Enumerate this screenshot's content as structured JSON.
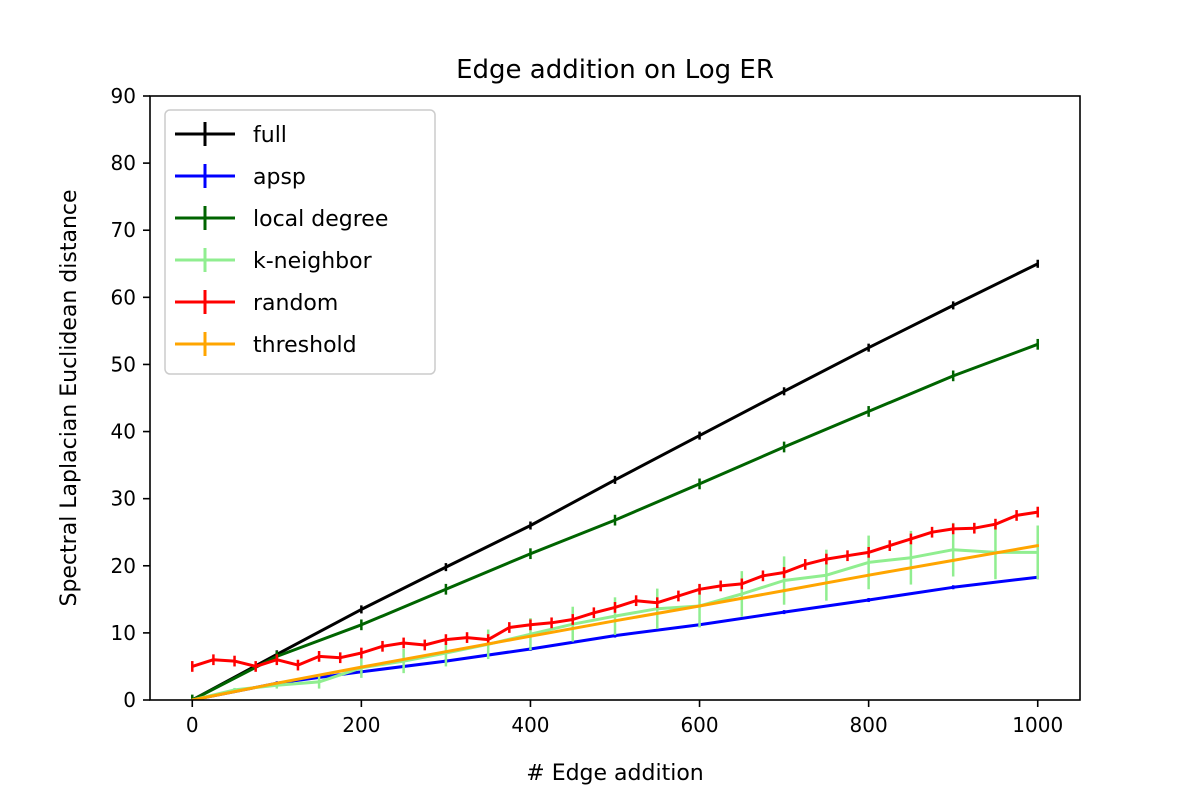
{
  "chart_data": {
    "type": "line",
    "title": "Edge addition on Log ER",
    "xlabel": "# Edge addition",
    "ylabel": "Spectral Laplacian Euclidean distance",
    "xlim": [
      -50,
      1050
    ],
    "ylim": [
      0,
      90
    ],
    "x_ticks": [
      "0",
      "200",
      "400",
      "600",
      "800",
      "1000"
    ],
    "y_ticks": [
      "0",
      "10",
      "20",
      "30",
      "40",
      "50",
      "60",
      "70",
      "80",
      "90"
    ],
    "grid": false,
    "legend_position": "upper-left",
    "series": [
      {
        "name": "full",
        "color": "#000000",
        "x": [
          0,
          100,
          200,
          300,
          400,
          500,
          600,
          700,
          800,
          900,
          1000
        ],
        "y": [
          0,
          6.8,
          13.5,
          19.8,
          26.0,
          32.8,
          39.4,
          46.0,
          52.5,
          58.8,
          65.0
        ],
        "error": 0.6
      },
      {
        "name": "apsp",
        "color": "#0000ff",
        "x": [
          0,
          100,
          200,
          300,
          400,
          500,
          600,
          700,
          800,
          900,
          1000
        ],
        "y": [
          0,
          2.5,
          4.2,
          5.8,
          7.6,
          9.6,
          11.2,
          13.1,
          14.9,
          16.8,
          18.3
        ],
        "error": 0.3
      },
      {
        "name": "local degree",
        "color": "#006400",
        "x": [
          0,
          100,
          200,
          300,
          400,
          500,
          600,
          700,
          800,
          900,
          1000
        ],
        "y": [
          0,
          6.5,
          11.2,
          16.5,
          21.8,
          26.8,
          32.2,
          37.7,
          43.0,
          48.3,
          53.0
        ],
        "error": 0.8
      },
      {
        "name": "k-neighbor",
        "color": "#90ee90",
        "x": [
          0,
          50,
          100,
          150,
          200,
          250,
          300,
          350,
          400,
          450,
          500,
          550,
          600,
          650,
          700,
          750,
          800,
          850,
          900,
          950,
          1000
        ],
        "y": [
          0,
          1.5,
          2.2,
          2.7,
          4.8,
          5.8,
          7.0,
          8.3,
          9.8,
          11.3,
          12.5,
          13.6,
          14.0,
          15.8,
          17.8,
          18.6,
          20.5,
          21.2,
          22.4,
          22.0,
          22.0
        ],
        "error": [
          0,
          0.3,
          0.5,
          1.0,
          1.5,
          1.8,
          2.0,
          2.2,
          2.4,
          2.6,
          2.8,
          3.0,
          3.2,
          3.4,
          3.6,
          3.8,
          4.0,
          4.0,
          4.0,
          4.0,
          4.0
        ]
      },
      {
        "name": "random",
        "color": "#ff0000",
        "x": [
          0,
          25,
          50,
          75,
          100,
          125,
          150,
          175,
          200,
          225,
          250,
          275,
          300,
          325,
          350,
          375,
          400,
          425,
          450,
          475,
          500,
          525,
          550,
          575,
          600,
          625,
          650,
          675,
          700,
          725,
          750,
          775,
          800,
          825,
          850,
          875,
          900,
          925,
          950,
          975,
          1000
        ],
        "y": [
          5.0,
          6.0,
          5.8,
          5.0,
          6.0,
          5.2,
          6.5,
          6.3,
          7.0,
          8.0,
          8.5,
          8.2,
          9.0,
          9.3,
          9.0,
          10.8,
          11.2,
          11.5,
          12.0,
          13.0,
          13.8,
          14.8,
          14.5,
          15.5,
          16.5,
          17.0,
          17.3,
          18.5,
          19.0,
          20.2,
          21.0,
          21.5,
          22.0,
          23.0,
          24.0,
          25.0,
          25.5,
          25.6,
          26.2,
          27.5,
          28.0
        ],
        "error": 0.8
      },
      {
        "name": "threshold",
        "color": "#ffa500",
        "x": [
          0,
          100,
          200,
          300,
          400,
          500,
          600,
          700,
          800,
          900,
          1000
        ],
        "y": [
          0,
          2.5,
          4.9,
          7.2,
          9.5,
          11.8,
          14.0,
          16.3,
          18.6,
          20.8,
          23.0
        ],
        "error": 0.2
      }
    ]
  }
}
